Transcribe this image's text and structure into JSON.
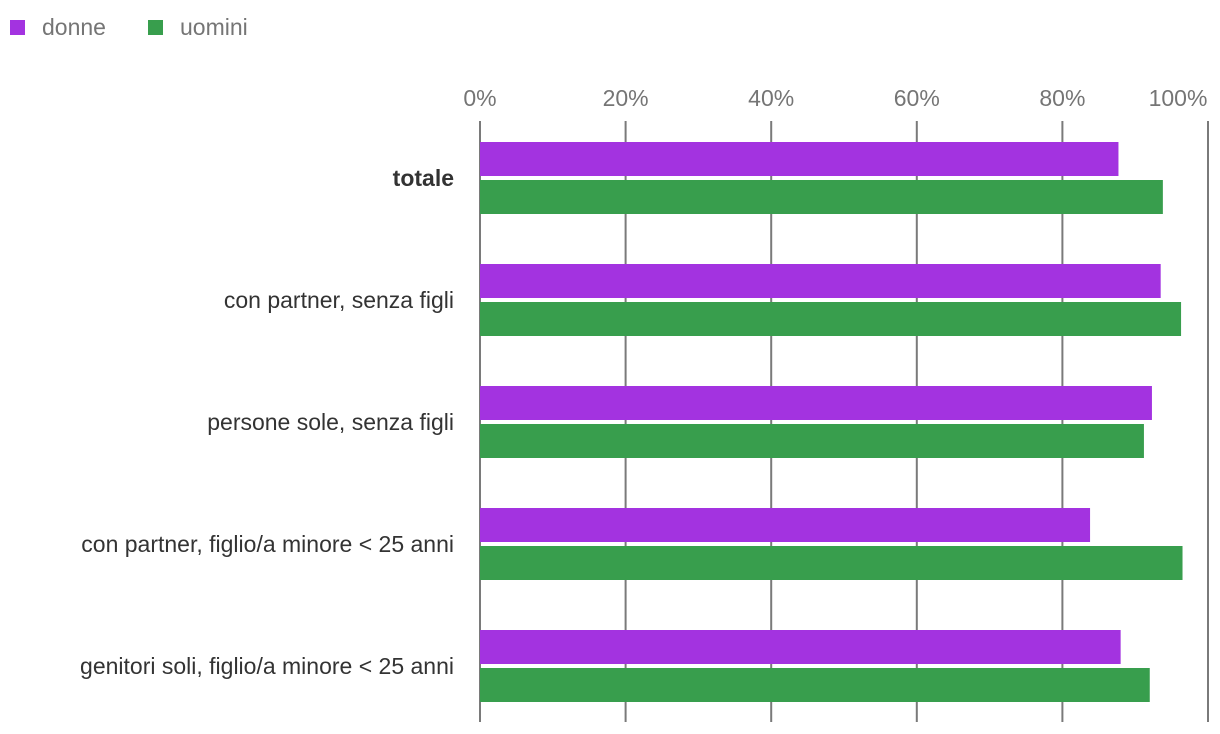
{
  "chart_data": {
    "type": "bar",
    "orientation": "horizontal",
    "categories": [
      "totale",
      "con partner, senza figli",
      "persone sole, senza figli",
      "con partner, figlio/a minore < 25 anni",
      "genitori soli, figlio/a minore < 25 anni"
    ],
    "series": [
      {
        "name": "donne",
        "color": "#a333e0",
        "values": [
          87.7,
          93.5,
          92.3,
          83.8,
          88.0
        ]
      },
      {
        "name": "uomini",
        "color": "#389e4d",
        "values": [
          93.8,
          96.3,
          91.2,
          96.5,
          92.0
        ]
      }
    ],
    "xlim": [
      0,
      100
    ],
    "ticks": [
      "0%",
      "20%",
      "40%",
      "60%",
      "80%",
      "100%"
    ],
    "tick_values": [
      0,
      20,
      40,
      60,
      80,
      100
    ],
    "bold_categories": [
      0
    ],
    "legend_position": "top-left",
    "grid": true,
    "title": "",
    "xlabel": "",
    "ylabel": ""
  }
}
